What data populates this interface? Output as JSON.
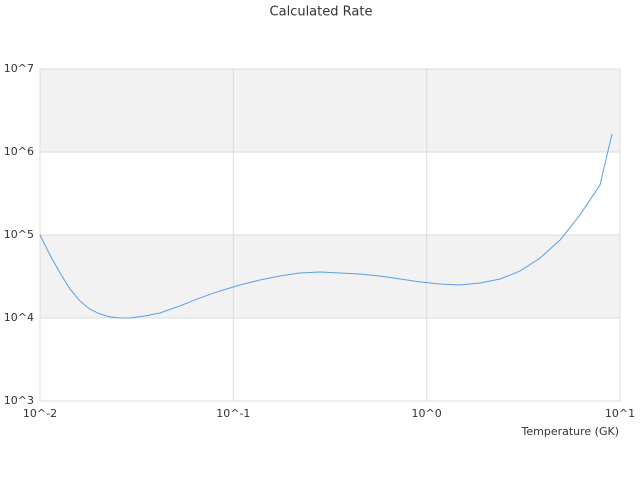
{
  "chart_data": {
    "type": "line",
    "title": "Calculated Rate",
    "x_label": "Temperature (GK)",
    "x": [
      0.01,
      0.01126,
      0.0127,
      0.0143,
      0.0161,
      0.0181,
      0.0204,
      0.023,
      0.0259,
      0.0292,
      0.0349,
      0.0417,
      0.053,
      0.067,
      0.085,
      0.108,
      0.137,
      0.174,
      0.22,
      0.28,
      0.357,
      0.45,
      0.57,
      0.73,
      0.92,
      1.17,
      1.48,
      1.89,
      2.4,
      3.04,
      3.86,
      4.9,
      6.2,
      7.88,
      9.09
    ],
    "series": [
      {
        "color": "#5aa0e6",
        "values": [
          100000,
          57400,
          34800,
          22300,
          16000,
          12800,
          11200,
          10300,
          10000,
          10000,
          10600,
          11500,
          14000,
          17400,
          21100,
          25000,
          28700,
          32100,
          34800,
          35800,
          34800,
          33900,
          32100,
          29500,
          27200,
          25700,
          25000,
          26400,
          29500,
          36800,
          52800,
          87100,
          174000,
          400000,
          1650000
        ]
      }
    ],
    "xlim": [
      0.01,
      10
    ],
    "ylim": [
      1000,
      10000000
    ],
    "x_log": true,
    "y_log": true,
    "xticks": [
      {
        "value": 0.01,
        "label": "10^-2"
      },
      {
        "value": 0.1,
        "label": "10^-1"
      },
      {
        "value": 1,
        "label": "10^0"
      },
      {
        "value": 10,
        "label": "10^1"
      }
    ],
    "yticks": [
      {
        "value": 1000,
        "label": "10^3"
      },
      {
        "value": 10000,
        "label": "10^4"
      },
      {
        "value": 100000,
        "label": "10^5"
      },
      {
        "value": 1000000,
        "label": "10^6"
      },
      {
        "value": 10000000,
        "label": "10^7"
      }
    ],
    "grid": "bands"
  }
}
